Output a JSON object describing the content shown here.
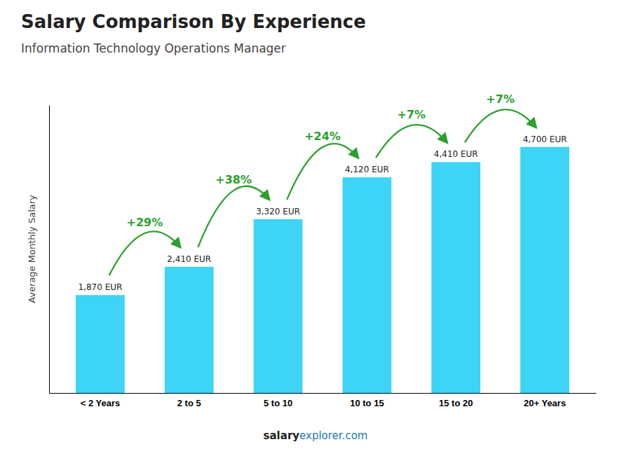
{
  "chart_data": {
    "type": "bar",
    "title": "Salary Comparison By Experience",
    "subtitle": "Information Technology Operations Manager",
    "ylabel": "Average Monthly Salary",
    "categories": [
      "< 2 Years",
      "2 to 5",
      "5 to 10",
      "10 to 15",
      "15 to 20",
      "20+ Years"
    ],
    "values": [
      1870,
      2410,
      3320,
      4120,
      4410,
      4700
    ],
    "value_labels": [
      "1,870 EUR",
      "2,410 EUR",
      "3,320 EUR",
      "4,120 EUR",
      "4,410 EUR",
      "4,700 EUR"
    ],
    "data_labels": true,
    "annotations": [
      "+29%",
      "+38%",
      "+24%",
      "+7%",
      "+7%"
    ],
    "footer": [
      "salary",
      "explorer.com"
    ],
    "color": "#3dd4f5",
    "ylim": [
      0,
      5500
    ],
    "tick_labels": "x",
    "grid": false
  }
}
